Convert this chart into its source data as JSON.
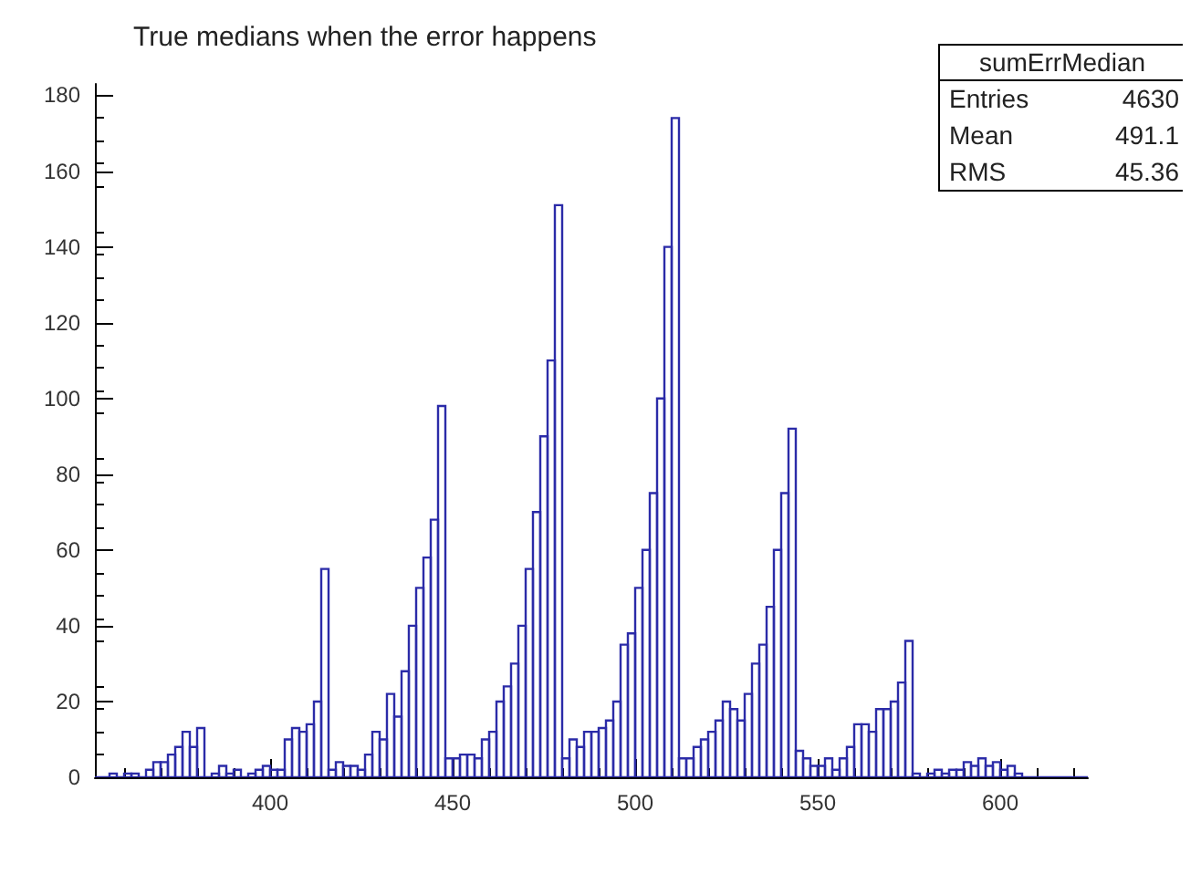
{
  "chart_data": {
    "type": "histogram",
    "title": "True medians when the error happens",
    "bins": [
      352,
      354,
      356,
      358,
      360,
      362,
      364,
      366,
      368,
      370,
      372,
      374,
      376,
      378,
      380,
      382,
      384,
      386,
      388,
      390,
      392,
      394,
      396,
      398,
      400,
      402,
      404,
      406,
      408,
      410,
      412,
      414,
      416,
      418,
      420,
      422,
      424,
      426,
      428,
      430,
      432,
      434,
      436,
      438,
      440,
      442,
      444,
      446,
      448,
      450,
      452,
      454,
      456,
      458,
      460,
      462,
      464,
      466,
      468,
      470,
      472,
      474,
      476,
      478,
      480,
      482,
      484,
      486,
      488,
      490,
      492,
      494,
      496,
      498,
      500,
      502,
      504,
      506,
      508,
      510,
      512,
      514,
      516,
      518,
      520,
      522,
      524,
      526,
      528,
      530,
      532,
      534,
      536,
      538,
      540,
      542,
      544,
      546,
      548,
      550,
      552,
      554,
      556,
      558,
      560,
      562,
      564,
      566,
      568,
      570,
      572,
      574,
      576,
      578,
      580,
      582,
      584,
      586,
      588,
      590,
      592,
      594,
      596,
      598,
      600,
      602,
      604,
      606,
      608,
      610,
      612,
      614,
      616,
      618,
      620,
      622,
      624
    ],
    "values": [
      0,
      0,
      1,
      0,
      1,
      1,
      0,
      2,
      4,
      4,
      6,
      8,
      12,
      8,
      13,
      0,
      1,
      3,
      1,
      2,
      0,
      1,
      2,
      3,
      2,
      2,
      10,
      13,
      12,
      14,
      20,
      55,
      2,
      4,
      3,
      3,
      2,
      6,
      12,
      10,
      22,
      16,
      28,
      40,
      50,
      58,
      68,
      98,
      5,
      5,
      6,
      6,
      5,
      10,
      12,
      20,
      24,
      30,
      40,
      55,
      70,
      90,
      110,
      151,
      5,
      10,
      8,
      12,
      12,
      13,
      15,
      20,
      35,
      38,
      50,
      60,
      75,
      100,
      140,
      174,
      5,
      5,
      8,
      10,
      12,
      15,
      20,
      18,
      15,
      22,
      30,
      35,
      45,
      60,
      75,
      92,
      7,
      5,
      3,
      3,
      5,
      2,
      5,
      8,
      14,
      14,
      12,
      18,
      18,
      20,
      25,
      36,
      1,
      0,
      1,
      2,
      1,
      2,
      2,
      4,
      3,
      5,
      3,
      4,
      2,
      3,
      1,
      0,
      0,
      0,
      0,
      0,
      0,
      0,
      0,
      0
    ],
    "color": "#2b2ba8",
    "xlim": [
      352,
      624
    ],
    "xticks": [
      400,
      450,
      500,
      550,
      600
    ],
    "ylim": [
      0,
      183
    ],
    "yticks": [
      0,
      20,
      40,
      60,
      80,
      100,
      120,
      140,
      160,
      180
    ],
    "grid": false,
    "annotations": [
      "sumErrMedian",
      "Entries 4630",
      "Mean 491.1",
      "RMS 45.36"
    ]
  }
}
